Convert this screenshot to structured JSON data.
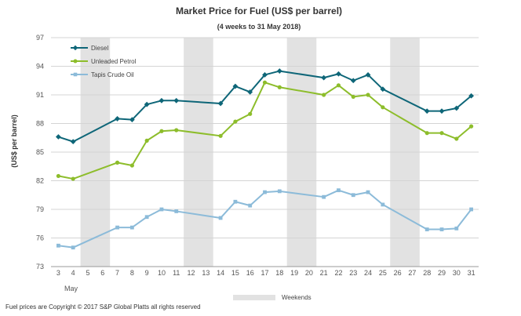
{
  "chart_data": {
    "type": "line",
    "title": "Market Price for Fuel (US$ per barrel)",
    "subtitle": "(4 weeks to 31 May 2018)",
    "xlabel": "May",
    "ylabel": "(US$ per barrel)",
    "ylim": [
      73,
      97
    ],
    "yticks": [
      73,
      76,
      79,
      82,
      85,
      88,
      91,
      94,
      97
    ],
    "days": [
      "3",
      "4",
      "5",
      "6",
      "7",
      "8",
      "9",
      "10",
      "11",
      "12",
      "13",
      "14",
      "15",
      "16",
      "17",
      "18",
      "19",
      "20",
      "21",
      "22",
      "23",
      "24",
      "25",
      "26",
      "27",
      "28",
      "29",
      "30",
      "31"
    ],
    "weekend_ranges": [
      [
        "5",
        "6"
      ],
      [
        "12",
        "13"
      ],
      [
        "19",
        "20"
      ],
      [
        "26",
        "27"
      ]
    ],
    "weekend_legend": "Weekends",
    "series": [
      {
        "name": "Diesel",
        "color": "#0e6678",
        "marker": "diamond",
        "points": [
          [
            "3",
            86.6
          ],
          [
            "4",
            86.1
          ],
          [
            "7",
            88.5
          ],
          [
            "8",
            88.4
          ],
          [
            "9",
            90.0
          ],
          [
            "10",
            90.4
          ],
          [
            "11",
            90.4
          ],
          [
            "14",
            90.1
          ],
          [
            "15",
            91.9
          ],
          [
            "16",
            91.3
          ],
          [
            "17",
            93.1
          ],
          [
            "18",
            93.5
          ],
          [
            "21",
            92.8
          ],
          [
            "22",
            93.2
          ],
          [
            "23",
            92.5
          ],
          [
            "24",
            93.1
          ],
          [
            "25",
            91.6
          ],
          [
            "28",
            89.3
          ],
          [
            "29",
            89.3
          ],
          [
            "30",
            89.6
          ],
          [
            "31",
            90.9
          ]
        ]
      },
      {
        "name": "Unleaded Petrol",
        "color": "#8dbd2b",
        "marker": "circle",
        "points": [
          [
            "3",
            82.5
          ],
          [
            "4",
            82.2
          ],
          [
            "7",
            83.9
          ],
          [
            "8",
            83.6
          ],
          [
            "9",
            86.2
          ],
          [
            "10",
            87.2
          ],
          [
            "11",
            87.3
          ],
          [
            "14",
            86.7
          ],
          [
            "15",
            88.2
          ],
          [
            "16",
            89.0
          ],
          [
            "17",
            92.3
          ],
          [
            "18",
            91.8
          ],
          [
            "21",
            91.0
          ],
          [
            "22",
            92.0
          ],
          [
            "23",
            90.8
          ],
          [
            "24",
            91.0
          ],
          [
            "25",
            89.7
          ],
          [
            "28",
            87.0
          ],
          [
            "29",
            87.0
          ],
          [
            "30",
            86.4
          ],
          [
            "31",
            87.7
          ]
        ]
      },
      {
        "name": "Tapis Crude Oil",
        "color": "#8cbbd9",
        "marker": "square",
        "points": [
          [
            "3",
            75.2
          ],
          [
            "4",
            75.0
          ],
          [
            "7",
            77.1
          ],
          [
            "8",
            77.1
          ],
          [
            "9",
            78.2
          ],
          [
            "10",
            79.0
          ],
          [
            "11",
            78.8
          ],
          [
            "14",
            78.1
          ],
          [
            "15",
            79.8
          ],
          [
            "16",
            79.4
          ],
          [
            "17",
            80.8
          ],
          [
            "18",
            80.9
          ],
          [
            "21",
            80.3
          ],
          [
            "22",
            81.0
          ],
          [
            "23",
            80.5
          ],
          [
            "24",
            80.8
          ],
          [
            "25",
            79.5
          ],
          [
            "28",
            76.9
          ],
          [
            "29",
            76.9
          ],
          [
            "30",
            77.0
          ],
          [
            "31",
            79.0
          ]
        ]
      }
    ]
  },
  "footer": {
    "copyright": "Fuel prices are Copyright © 2017 S&P Global Platts all rights reserved"
  }
}
